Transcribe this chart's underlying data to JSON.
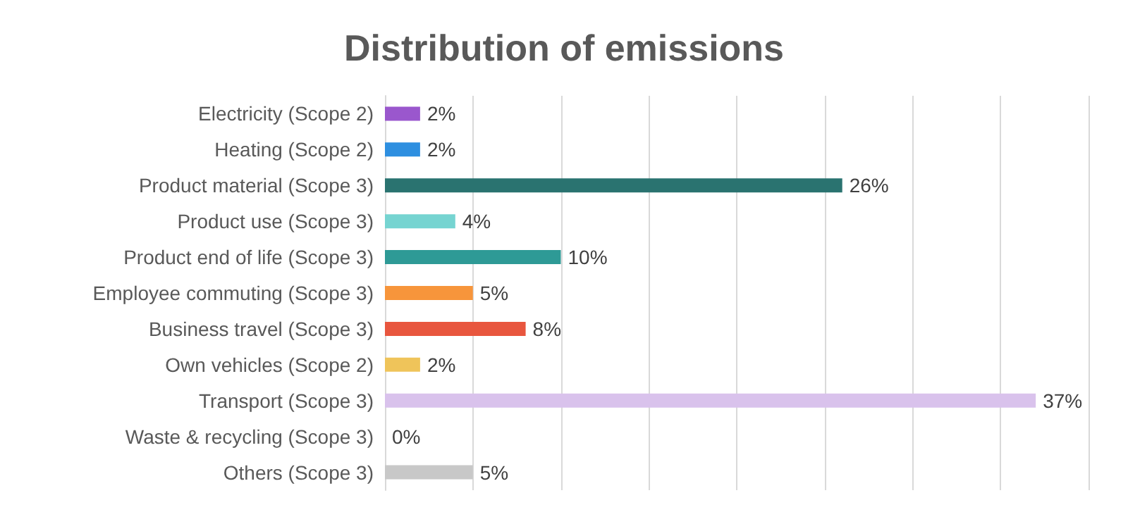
{
  "chart_data": {
    "type": "bar",
    "orientation": "horizontal",
    "title": "Distribution of emissions",
    "categories": [
      "Electricity (Scope 2)",
      "Heating (Scope 2)",
      "Product material (Scope 3)",
      "Product use (Scope 3)",
      "Product end of life (Scope 3)",
      "Employee commuting (Scope 3)",
      "Business travel (Scope 3)",
      "Own vehicles (Scope 2)",
      "Transport (Scope 3)",
      "Waste & recycling (Scope 3)",
      "Others (Scope 3)"
    ],
    "values": [
      2,
      2,
      26,
      4,
      10,
      5,
      8,
      2,
      37,
      0,
      5
    ],
    "value_labels": [
      "2%",
      "2%",
      "26%",
      "4%",
      "10%",
      "5%",
      "8%",
      "2%",
      "37%",
      "0%",
      "5%"
    ],
    "colors": [
      "#9a57cd",
      "#2e8fe0",
      "#2a7370",
      "#76d4d1",
      "#2e9a96",
      "#f7953b",
      "#e8563e",
      "#efc45a",
      "#d9c2ec",
      "#a5a5a5",
      "#c8c8c8"
    ],
    "xlim": [
      0,
      40
    ],
    "xticks": [
      {
        "value": 0,
        "label": null
      },
      {
        "value": 5,
        "label": null
      },
      {
        "value": 10,
        "label": null
      },
      {
        "value": 15,
        "label": null
      },
      {
        "value": 20,
        "label": null
      },
      {
        "value": 25,
        "label": null
      },
      {
        "value": 30,
        "label": null
      },
      {
        "value": 35,
        "label": null
      },
      {
        "value": 40,
        "label": null
      }
    ],
    "tick_labels": "y",
    "grid": "x"
  }
}
